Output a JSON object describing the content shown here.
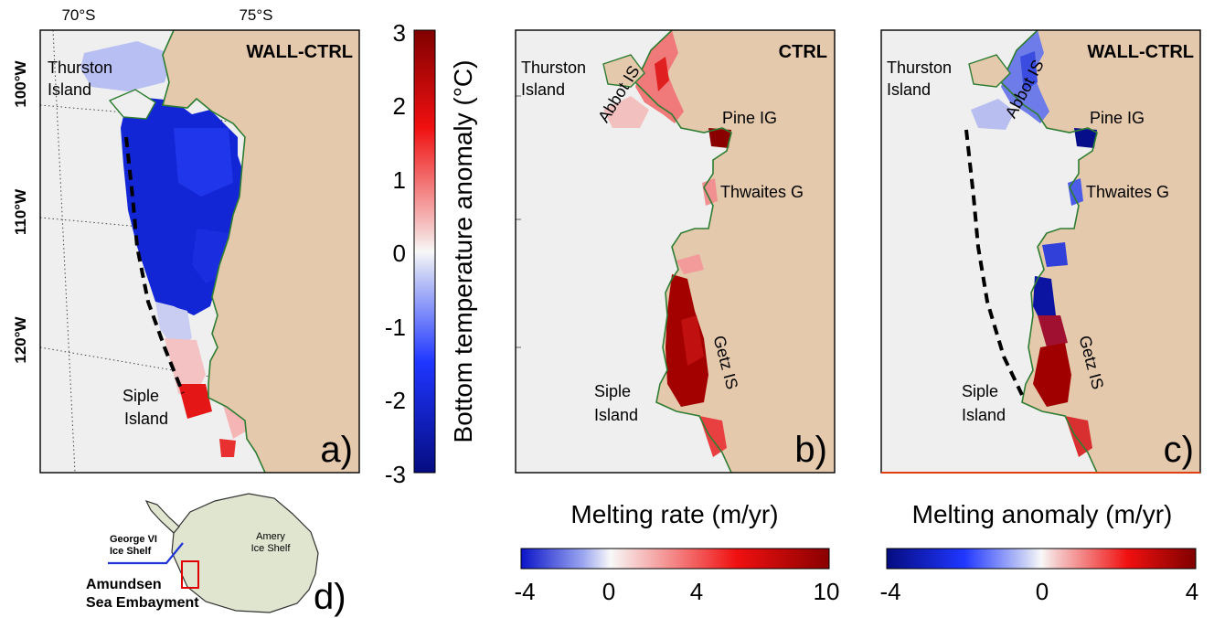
{
  "panel_a": {
    "title": "WALL-CTRL",
    "panel_label": "a)",
    "lat_labels": [
      "70°S",
      "75°S"
    ],
    "lon_labels": [
      "100°W",
      "110°W",
      "120°W"
    ],
    "place_labels": {
      "thurston_1": "Thurston",
      "thurston_2": "Island",
      "siple_1": "Siple",
      "siple_2": "Island"
    }
  },
  "panel_b": {
    "title": "CTRL",
    "panel_label": "b)",
    "place_labels": {
      "thurston_1": "Thurston",
      "thurston_2": "Island",
      "abbot": "Abbot IS",
      "pine": "Pine IG",
      "thwaites": "Thwaites G",
      "getz": "Getz IS",
      "siple_1": "Siple",
      "siple_2": "Island"
    }
  },
  "panel_c": {
    "title": "WALL-CTRL",
    "panel_label": "c)",
    "place_labels": {
      "thurston_1": "Thurston",
      "thurston_2": "Island",
      "abbot": "Abbot IS",
      "pine": "Pine IG",
      "thwaites": "Thwaites G",
      "getz": "Getz IS",
      "siple_1": "Siple",
      "siple_2": "Island"
    }
  },
  "colorbar_temp": {
    "label": "Bottom temperature anomaly (°C)",
    "ticks": [
      "3",
      "2",
      "1",
      "0",
      "-1",
      "-2",
      "-3"
    ],
    "range": [
      -3,
      3
    ]
  },
  "colorbar_melt": {
    "label": "Melting rate (m/yr)",
    "ticks": [
      "-4",
      "0",
      "4",
      "10"
    ],
    "range": [
      -4,
      10
    ]
  },
  "colorbar_anom": {
    "label": "Melting anomaly (m/yr)",
    "ticks": [
      "-4",
      "0",
      "4"
    ],
    "range": [
      -4,
      4
    ]
  },
  "inset": {
    "panel_label": "d)",
    "george_1": "George VI",
    "george_2": "Ice Shelf",
    "amery_1": "Amery",
    "amery_2": "Ice Shelf",
    "amundsen_1": "Amundsen",
    "amundsen_2": "Sea Embayment"
  },
  "colors": {
    "land": "#e5c9ad",
    "ocean": "#efefef",
    "coast": "#2e7d32",
    "cold": "#0a1fbf",
    "warm": "#b30000",
    "inset_land": "#dfe5cf",
    "highlight_box": "#e00000"
  }
}
